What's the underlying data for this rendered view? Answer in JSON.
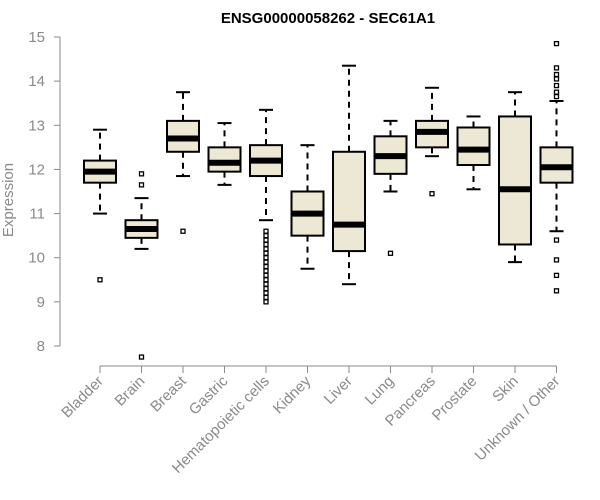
{
  "chart_data": {
    "type": "boxplot",
    "title": "ENSG00000058262 - SEC61A1",
    "xlabel": "",
    "ylabel": "Expression",
    "ylim": [
      8,
      15
    ],
    "yticks": [
      8,
      9,
      10,
      11,
      12,
      13,
      14,
      15
    ],
    "box_color": "#EDE8D3",
    "categories": [
      "Bladder",
      "Brain",
      "Breast",
      "Gastric",
      "Hematopoietic cells",
      "Kidney",
      "Liver",
      "Lung",
      "Pancreas",
      "Prostate",
      "Skin",
      "Unknown / Other"
    ],
    "boxes": [
      {
        "name": "Bladder",
        "min": 11.0,
        "q1": 11.7,
        "median": 11.95,
        "q3": 12.2,
        "max": 12.9,
        "outliers": [
          9.5
        ]
      },
      {
        "name": "Brain",
        "min": 10.2,
        "q1": 10.45,
        "median": 10.65,
        "q3": 10.85,
        "max": 11.35,
        "outliers": [
          11.65,
          11.9,
          7.75
        ]
      },
      {
        "name": "Breast",
        "min": 11.85,
        "q1": 12.4,
        "median": 12.7,
        "q3": 13.1,
        "max": 13.75,
        "outliers": [
          10.6
        ]
      },
      {
        "name": "Gastric",
        "min": 11.65,
        "q1": 11.95,
        "median": 12.15,
        "q3": 12.5,
        "max": 13.05,
        "outliers": []
      },
      {
        "name": "Hematopoietic cells",
        "min": 10.85,
        "q1": 11.85,
        "median": 12.2,
        "q3": 12.55,
        "max": 13.35,
        "outliers": [
          10.6,
          10.5,
          10.4,
          10.3,
          10.2,
          10.1,
          10.0,
          9.9,
          9.8,
          9.7,
          9.6,
          9.5,
          9.4,
          9.3,
          9.2,
          9.1,
          9.0
        ]
      },
      {
        "name": "Kidney",
        "min": 9.75,
        "q1": 10.5,
        "median": 11.0,
        "q3": 11.5,
        "max": 12.55,
        "outliers": []
      },
      {
        "name": "Liver",
        "min": 9.4,
        "q1": 10.15,
        "median": 10.75,
        "q3": 12.4,
        "max": 14.35,
        "outliers": []
      },
      {
        "name": "Lung",
        "min": 11.5,
        "q1": 11.9,
        "median": 12.3,
        "q3": 12.75,
        "max": 13.1,
        "outliers": [
          10.1
        ]
      },
      {
        "name": "Pancreas",
        "min": 12.3,
        "q1": 12.5,
        "median": 12.85,
        "q3": 13.1,
        "max": 13.85,
        "outliers": [
          11.45
        ]
      },
      {
        "name": "Prostate",
        "min": 11.55,
        "q1": 12.1,
        "median": 12.45,
        "q3": 12.95,
        "max": 13.2,
        "outliers": []
      },
      {
        "name": "Skin",
        "min": 9.9,
        "q1": 10.3,
        "median": 11.55,
        "q3": 13.2,
        "max": 13.75,
        "outliers": []
      },
      {
        "name": "Unknown / Other",
        "min": 10.6,
        "q1": 11.7,
        "median": 12.05,
        "q3": 12.5,
        "max": 13.55,
        "outliers": [
          14.85,
          14.3,
          14.15,
          14.05,
          13.9,
          13.75,
          13.65,
          10.4,
          9.95,
          9.6,
          9.25
        ]
      }
    ]
  }
}
